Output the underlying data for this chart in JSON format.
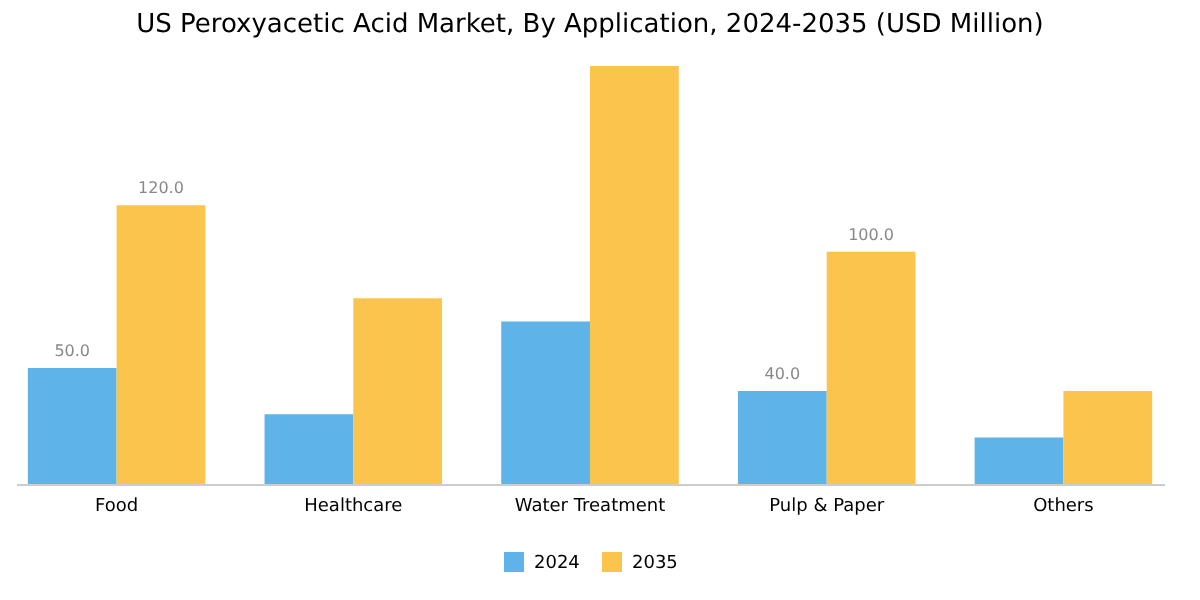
{
  "chart_data": {
    "type": "bar",
    "title": "US Peroxyacetic Acid Market, By Application, 2024-2035 (USD Million)",
    "categories": [
      "Food",
      "Healthcare",
      "Water Treatment",
      "Pulp & Paper",
      "Others"
    ],
    "series": [
      {
        "name": "2024",
        "color": "#5eb4e8",
        "values": [
          50,
          30,
          70,
          40,
          20
        ],
        "value_labels": [
          "50.0",
          null,
          null,
          "40.0",
          null
        ]
      },
      {
        "name": "2035",
        "color": "#fbc44c",
        "values": [
          120,
          80,
          180,
          100,
          40
        ],
        "value_labels": [
          "120.0",
          null,
          null,
          "100.0",
          null
        ]
      }
    ],
    "legend": "bottom",
    "grid": false
  }
}
